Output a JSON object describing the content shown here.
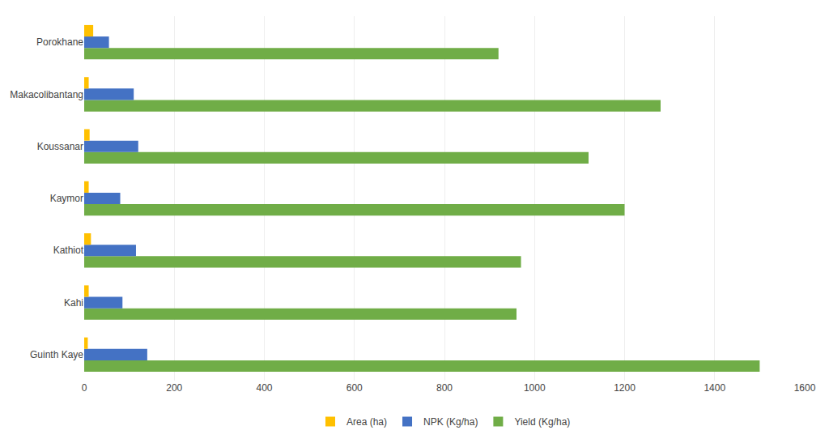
{
  "chart_data": {
    "type": "bar",
    "orientation": "horizontal",
    "categories": [
      "Guinth Kaye",
      "Kahi",
      "Kathiot",
      "Kaymor",
      "Koussanar",
      "Makacolibantang",
      "Porokhane"
    ],
    "series": [
      {
        "name": "Yield (Kg/ha)",
        "color": "#70AD47",
        "values": [
          1500,
          960,
          970,
          1200,
          1120,
          1280,
          920
        ]
      },
      {
        "name": "NPK (Kg/ha)",
        "color": "#4472C4",
        "values": [
          140,
          85,
          115,
          80,
          120,
          110,
          55
        ]
      },
      {
        "name": "Area (ha)",
        "color": "#FFC000",
        "values": [
          8,
          10,
          15,
          10,
          12,
          10,
          20
        ]
      }
    ],
    "xlim": [
      0,
      1600
    ],
    "xticks": [
      0,
      200,
      400,
      600,
      800,
      1000,
      1200,
      1400,
      1600
    ],
    "grid": true,
    "legend": "bottom"
  }
}
